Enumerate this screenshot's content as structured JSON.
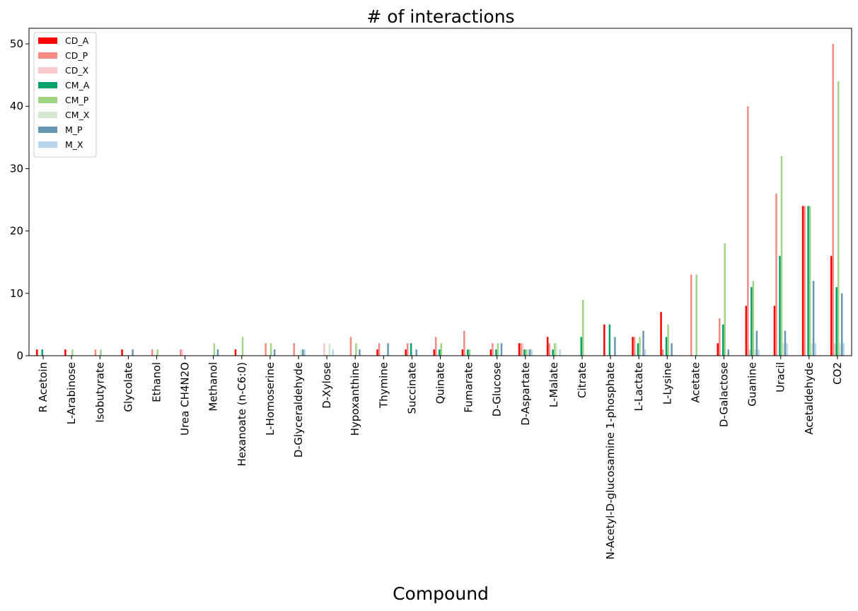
{
  "chart_data": {
    "type": "bar",
    "title": "# of interactions",
    "xlabel": "Compound",
    "ylabel": "",
    "ylim": [
      0,
      52.5
    ],
    "yticks": [
      0,
      10,
      20,
      30,
      40,
      50
    ],
    "grid": false,
    "legend": "upper-left",
    "categories": [
      "R  Acetoin",
      "L-Arabinose",
      "Isobutyrate",
      "Glycolate",
      "Ethanol",
      "Urea CH4N2O",
      "Methanol",
      "Hexanoate (n-C6:0)",
      "L-Homoserine",
      "D-Glyceraldehyde",
      "D-Xylose",
      "Hypoxanthine",
      "Thymine",
      "Succinate",
      "Quinate",
      "Fumarate",
      "D-Glucose",
      "D-Aspartate",
      "L-Malate",
      "Citrate",
      "N-Acetyl-D-glucosamine 1-phosphate",
      "L-Lactate",
      "L-Lysine",
      "Acetate",
      "D-Galactose",
      "Guanine",
      "Uracil",
      "Acetaldehyde",
      "CO2"
    ],
    "series": [
      {
        "name": "CD_A",
        "color": "#ff0000",
        "values": [
          1,
          1,
          0,
          1,
          0,
          0,
          0,
          1,
          0,
          0,
          0,
          0,
          1,
          1,
          1,
          1,
          1,
          2,
          3,
          0,
          5,
          3,
          7,
          0,
          2,
          8,
          8,
          24,
          16
        ]
      },
      {
        "name": "CD_P",
        "color": "#f48a82",
        "values": [
          0,
          0,
          1,
          0,
          1,
          1,
          0,
          0,
          2,
          2,
          0,
          3,
          2,
          2,
          3,
          4,
          2,
          2,
          2,
          0,
          0,
          3,
          1,
          13,
          6,
          40,
          26,
          24,
          50
        ]
      },
      {
        "name": "CD_X",
        "color": "#f8c8cb",
        "values": [
          0,
          0,
          0,
          0,
          0,
          1,
          0,
          0,
          0,
          0,
          2,
          0,
          0,
          0,
          0,
          0,
          0,
          2,
          0,
          0,
          0,
          0,
          0,
          0,
          0,
          1,
          0,
          0,
          2
        ]
      },
      {
        "name": "CM_A",
        "color": "#00a26b",
        "values": [
          1,
          0,
          0,
          0,
          0,
          0,
          0,
          0,
          0,
          0,
          0,
          0,
          0,
          2,
          1,
          1,
          1,
          1,
          1,
          3,
          5,
          2,
          3,
          0,
          5,
          11,
          16,
          24,
          11
        ]
      },
      {
        "name": "CM_P",
        "color": "#9fd585",
        "values": [
          0,
          1,
          1,
          0,
          1,
          0,
          2,
          3,
          2,
          0,
          0,
          2,
          0,
          0,
          2,
          1,
          2,
          1,
          2,
          9,
          0,
          3,
          5,
          13,
          18,
          12,
          32,
          24,
          44
        ]
      },
      {
        "name": "CM_X",
        "color": "#d4e8cf",
        "values": [
          0,
          0,
          0,
          0,
          0,
          0,
          0,
          0,
          0,
          1,
          2,
          0,
          0,
          0,
          0,
          0,
          0,
          1,
          2,
          0,
          0,
          0,
          0,
          0,
          0,
          1,
          2,
          2,
          2
        ]
      },
      {
        "name": "M_P",
        "color": "#6698b4",
        "values": [
          0,
          0,
          0,
          1,
          0,
          0,
          1,
          0,
          1,
          1,
          0,
          1,
          2,
          1,
          0,
          0,
          2,
          1,
          0,
          0,
          3,
          4,
          2,
          0,
          1,
          4,
          4,
          12,
          10
        ]
      },
      {
        "name": "M_X",
        "color": "#b8d5ee",
        "values": [
          0,
          0,
          0,
          0,
          0,
          0,
          0,
          0,
          0,
          1,
          1,
          0,
          0,
          0,
          0,
          0,
          0,
          1,
          1,
          0,
          0,
          1,
          0,
          0,
          0,
          1,
          2,
          2,
          2
        ]
      }
    ]
  }
}
